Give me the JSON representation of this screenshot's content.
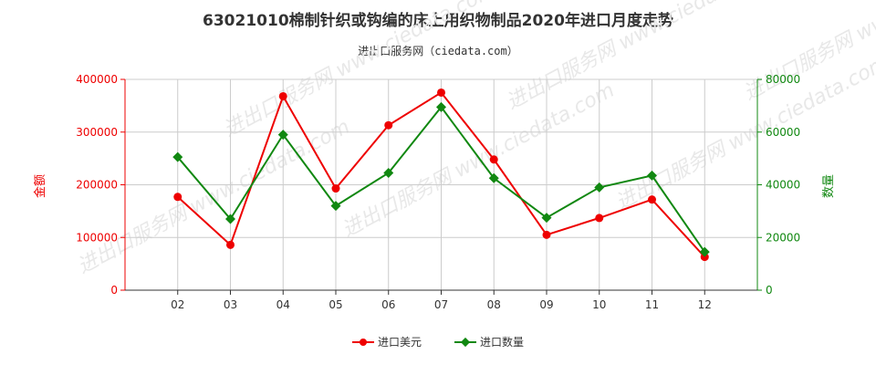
{
  "title": "63021010棉制针织或钩编的床上用织物制品2020年进口月度走势",
  "subtitle": "进出口服务网（ciedata.com）",
  "watermark": "进出口服务网 www.ciedata.com",
  "colors": {
    "amount": "#ee0000",
    "quantity": "#118811",
    "grid": "#cccccc",
    "watermark": "#e8e8e8"
  },
  "chart_data": {
    "type": "line",
    "categories": [
      "02",
      "03",
      "04",
      "05",
      "06",
      "07",
      "08",
      "09",
      "10",
      "11",
      "12"
    ],
    "y_left": {
      "label": "金额",
      "range": [
        0,
        400000
      ],
      "ticks": [
        "0",
        "100000",
        "200000",
        "300000",
        "400000"
      ]
    },
    "y_right": {
      "label": "数量",
      "range": [
        0,
        80000
      ],
      "ticks": [
        "0",
        "20000",
        "40000",
        "60000",
        "80000"
      ]
    },
    "series": [
      {
        "name": "进口美元",
        "axis": "left",
        "marker": "circle",
        "values": [
          177000,
          86000,
          368000,
          193000,
          313000,
          375000,
          248000,
          105000,
          137000,
          172000,
          63000
        ]
      },
      {
        "name": "进口数量",
        "axis": "right",
        "marker": "diamond",
        "values": [
          50500,
          27000,
          59000,
          32000,
          44500,
          69500,
          42500,
          27500,
          39000,
          43500,
          14500
        ]
      }
    ],
    "grid": true,
    "legend_position": "bottom"
  }
}
